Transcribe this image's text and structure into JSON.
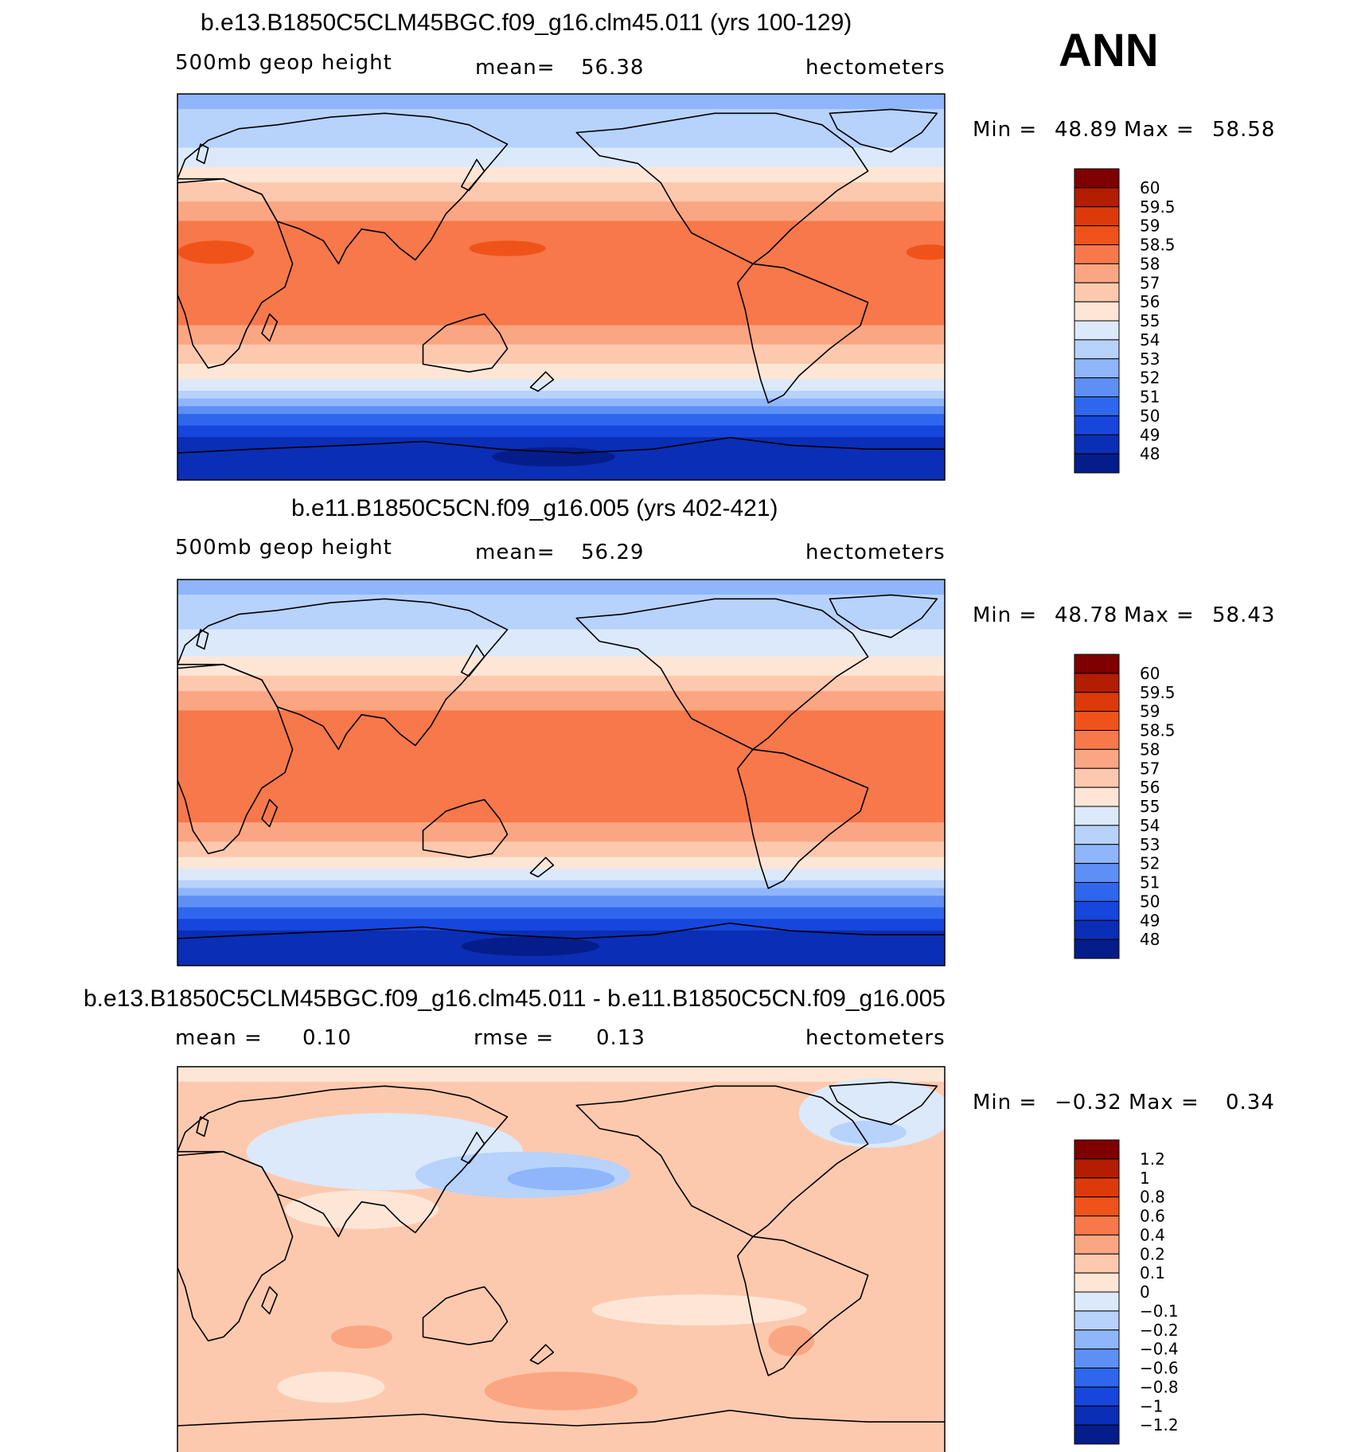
{
  "season": "ANN",
  "chart_data": [
    {
      "type": "heatmap",
      "title": "b.e13.B1850C5CLM45BGC.f09_g16.clm45.011 (yrs 100-129)",
      "variable": "500mb  geop  height",
      "mean_label": "mean=",
      "mean": "56.38",
      "units": "hectometers",
      "min_label": "Min  =",
      "min": "48.89",
      "max_label": "Max  =",
      "max": "58.58",
      "colorbar_levels": [
        "60",
        "59.5",
        "59",
        "58.5",
        "58",
        "57",
        "56",
        "55",
        "54",
        "53",
        "52",
        "51",
        "50",
        "49",
        "48"
      ],
      "colors": [
        "#7f0000",
        "#b31d00",
        "#dc3a0a",
        "#f0531a",
        "#f7784a",
        "#fba683",
        "#fdc9ae",
        "#fee6d6",
        "#dbe9fb",
        "#b7d2fb",
        "#8fb5fa",
        "#5d8ff5",
        "#2e66ee",
        "#1646dc",
        "#0a2eb5",
        "#051d8a"
      ],
      "bands": [
        [
          "#8fb5fa",
          0.04
        ],
        [
          "#b7d2fb",
          0.14
        ],
        [
          "#dbe9fb",
          0.19
        ],
        [
          "#fee6d6",
          0.23
        ],
        [
          "#fdc9ae",
          0.28
        ],
        [
          "#fba683",
          0.33
        ],
        [
          "#f7784a",
          0.4
        ],
        [
          "#f7784a",
          0.6
        ],
        [
          "#fba683",
          0.65
        ],
        [
          "#fdc9ae",
          0.7
        ],
        [
          "#fee6d6",
          0.74
        ],
        [
          "#dbe9fb",
          0.77
        ],
        [
          "#b7d2fb",
          0.79
        ],
        [
          "#8fb5fa",
          0.81
        ],
        [
          "#5d8ff5",
          0.83
        ],
        [
          "#2e66ee",
          0.86
        ],
        [
          "#1646dc",
          0.89
        ],
        [
          "#0a2eb5",
          1.0
        ]
      ],
      "blobs": [
        [
          "#f0531a",
          0.43,
          0.4,
          0.05,
          0.02
        ],
        [
          "#f0531a",
          0.05,
          0.41,
          0.05,
          0.03
        ],
        [
          "#f0531a",
          0.98,
          0.41,
          0.03,
          0.02
        ],
        [
          "#051d8a",
          0.49,
          0.94,
          0.08,
          0.025
        ]
      ]
    },
    {
      "type": "heatmap",
      "title": "b.e11.B1850C5CN.f09_g16.005 (yrs 402-421)",
      "variable": "500mb  geop  height",
      "mean_label": "mean=",
      "mean": "56.29",
      "units": "hectometers",
      "min_label": "Min  =",
      "min": "48.78",
      "max_label": "Max  =",
      "max": "58.43",
      "colorbar_levels": [
        "60",
        "59.5",
        "59",
        "58.5",
        "58",
        "57",
        "56",
        "55",
        "54",
        "53",
        "52",
        "51",
        "50",
        "49",
        "48"
      ],
      "colors": [
        "#7f0000",
        "#b31d00",
        "#dc3a0a",
        "#f0531a",
        "#f7784a",
        "#fba683",
        "#fdc9ae",
        "#fee6d6",
        "#dbe9fb",
        "#b7d2fb",
        "#8fb5fa",
        "#5d8ff5",
        "#2e66ee",
        "#1646dc",
        "#0a2eb5",
        "#051d8a"
      ],
      "bands": [
        [
          "#8fb5fa",
          0.04
        ],
        [
          "#b7d2fb",
          0.13
        ],
        [
          "#dbe9fb",
          0.2
        ],
        [
          "#fee6d6",
          0.25
        ],
        [
          "#fdc9ae",
          0.29
        ],
        [
          "#fba683",
          0.34
        ],
        [
          "#f7784a",
          0.4
        ],
        [
          "#f7784a",
          0.63
        ],
        [
          "#fba683",
          0.68
        ],
        [
          "#fdc9ae",
          0.72
        ],
        [
          "#fee6d6",
          0.75
        ],
        [
          "#dbe9fb",
          0.78
        ],
        [
          "#b7d2fb",
          0.8
        ],
        [
          "#8fb5fa",
          0.82
        ],
        [
          "#5d8ff5",
          0.85
        ],
        [
          "#2e66ee",
          0.88
        ],
        [
          "#1646dc",
          0.91
        ],
        [
          "#0a2eb5",
          1.0
        ]
      ],
      "blobs": [
        [
          "#051d8a",
          0.46,
          0.95,
          0.09,
          0.025
        ]
      ]
    },
    {
      "type": "heatmap",
      "title": "b.e13.B1850C5CLM45BGC.f09_g16.clm45.011 - b.e11.B1850C5CN.f09_g16.005",
      "variable": "mean =",
      "mean_label": "",
      "mean": "0.10",
      "rmse_label": "rmse =",
      "rmse": "0.13",
      "units": "hectometers",
      "min_label": "Min  =",
      "min": "−0.32",
      "max_label": "Max  =",
      "max": "0.34",
      "colorbar_levels": [
        "1.2",
        "1",
        "0.8",
        "0.6",
        "0.4",
        "0.2",
        "0.1",
        "0",
        "−0.1",
        "−0.2",
        "−0.4",
        "−0.6",
        "−0.8",
        "−1",
        "−1.2"
      ],
      "colors": [
        "#7f0000",
        "#b31d00",
        "#dc3a0a",
        "#f0531a",
        "#f7784a",
        "#fba683",
        "#fdc9ae",
        "#fee6d6",
        "#dbe9fb",
        "#b7d2fb",
        "#8fb5fa",
        "#5d8ff5",
        "#2e66ee",
        "#1646dc",
        "#0a2eb5",
        "#051d8a"
      ],
      "bands": [
        [
          "#fee6d6",
          0.04
        ],
        [
          "#fdc9ae",
          1.0
        ]
      ],
      "blobs": [
        [
          "#dbe9fb",
          0.27,
          0.22,
          0.18,
          0.1
        ],
        [
          "#b7d2fb",
          0.45,
          0.28,
          0.14,
          0.06
        ],
        [
          "#8fb5fa",
          0.5,
          0.29,
          0.07,
          0.03
        ],
        [
          "#dbe9fb",
          0.91,
          0.12,
          0.1,
          0.09
        ],
        [
          "#b7d2fb",
          0.9,
          0.17,
          0.05,
          0.03
        ],
        [
          "#fee6d6",
          0.24,
          0.37,
          0.1,
          0.05
        ],
        [
          "#fba683",
          0.24,
          0.7,
          0.04,
          0.03
        ],
        [
          "#fba683",
          0.5,
          0.84,
          0.1,
          0.05
        ],
        [
          "#fba683",
          0.8,
          0.71,
          0.03,
          0.04
        ],
        [
          "#fee6d6",
          0.2,
          0.83,
          0.07,
          0.04
        ],
        [
          "#fee6d6",
          0.68,
          0.63,
          0.14,
          0.04
        ]
      ]
    }
  ]
}
